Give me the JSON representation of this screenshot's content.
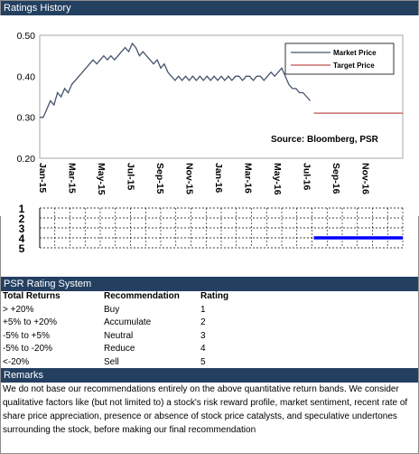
{
  "headers": {
    "ratings_history": "Ratings History",
    "rating_system": "PSR Rating System",
    "remarks": "Remarks"
  },
  "chart_data": [
    {
      "type": "line",
      "yticks": [
        "0.50",
        "0.40",
        "0.30",
        "0.20"
      ],
      "ylim": [
        0.2,
        0.5
      ],
      "xticks": [
        "Jan-15",
        "Mar-15",
        "May-15",
        "Jul-15",
        "Sep-15",
        "Nov-15",
        "Jan-16",
        "Mar-16",
        "May-16",
        "Jul-16",
        "Sep-16",
        "Nov-16"
      ],
      "legend": [
        "Market Price",
        "Target Price"
      ],
      "legend_position": "top-right",
      "annotation": "Source: Bloomberg, PSR",
      "series": [
        {
          "name": "Market Price",
          "color": "#44546a",
          "points": [
            [
              0,
              0.3
            ],
            [
              1,
              0.3
            ],
            [
              2,
              0.32
            ],
            [
              3,
              0.34
            ],
            [
              4,
              0.33
            ],
            [
              5,
              0.36
            ],
            [
              6,
              0.35
            ],
            [
              7,
              0.37
            ],
            [
              8,
              0.36
            ],
            [
              9,
              0.38
            ],
            [
              10,
              0.39
            ],
            [
              11,
              0.4
            ],
            [
              12,
              0.41
            ],
            [
              13,
              0.42
            ],
            [
              14,
              0.43
            ],
            [
              15,
              0.44
            ],
            [
              16,
              0.43
            ],
            [
              17,
              0.44
            ],
            [
              18,
              0.45
            ],
            [
              19,
              0.44
            ],
            [
              20,
              0.45
            ],
            [
              21,
              0.44
            ],
            [
              22,
              0.45
            ],
            [
              23,
              0.46
            ],
            [
              24,
              0.47
            ],
            [
              25,
              0.46
            ],
            [
              26,
              0.48
            ],
            [
              27,
              0.47
            ],
            [
              28,
              0.45
            ],
            [
              29,
              0.46
            ],
            [
              30,
              0.45
            ],
            [
              31,
              0.44
            ],
            [
              32,
              0.43
            ],
            [
              33,
              0.44
            ],
            [
              34,
              0.42
            ],
            [
              35,
              0.43
            ],
            [
              36,
              0.41
            ],
            [
              37,
              0.4
            ],
            [
              38,
              0.39
            ],
            [
              39,
              0.4
            ],
            [
              40,
              0.39
            ],
            [
              41,
              0.4
            ],
            [
              42,
              0.39
            ],
            [
              43,
              0.4
            ],
            [
              44,
              0.39
            ],
            [
              45,
              0.4
            ],
            [
              46,
              0.39
            ],
            [
              47,
              0.4
            ],
            [
              48,
              0.39
            ],
            [
              49,
              0.4
            ],
            [
              50,
              0.39
            ],
            [
              51,
              0.4
            ],
            [
              52,
              0.39
            ],
            [
              53,
              0.4
            ],
            [
              54,
              0.39
            ],
            [
              55,
              0.4
            ],
            [
              56,
              0.4
            ],
            [
              57,
              0.39
            ],
            [
              58,
              0.4
            ],
            [
              59,
              0.4
            ],
            [
              60,
              0.39
            ],
            [
              61,
              0.4
            ],
            [
              62,
              0.4
            ],
            [
              63,
              0.39
            ],
            [
              64,
              0.4
            ],
            [
              65,
              0.41
            ],
            [
              66,
              0.4
            ],
            [
              67,
              0.41
            ],
            [
              68,
              0.42
            ],
            [
              69,
              0.4
            ],
            [
              70,
              0.38
            ],
            [
              71,
              0.37
            ],
            [
              72,
              0.37
            ],
            [
              73,
              0.36
            ],
            [
              74,
              0.36
            ],
            [
              75,
              0.35
            ],
            [
              76,
              0.34
            ]
          ],
          "x_note": "weekly index from Jan-15"
        },
        {
          "name": "Target Price",
          "color": "#c0504d",
          "points": [
            [
              77,
              0.31
            ],
            [
              102,
              0.31
            ]
          ]
        }
      ]
    },
    {
      "type": "line",
      "yticks": [
        "1",
        "2",
        "3",
        "4",
        "5"
      ],
      "ylim": [
        1,
        5
      ],
      "series": [
        {
          "name": "Rating",
          "color": "#0000ff",
          "points": [
            [
              77,
              4
            ],
            [
              102,
              4
            ]
          ]
        }
      ]
    }
  ],
  "rating_system": {
    "columns": [
      "Total Returns",
      "Recommendation",
      "Rating"
    ],
    "rows": [
      [
        "> +20%",
        "Buy",
        "1"
      ],
      [
        "+5% to +20%",
        "Accumulate",
        "2"
      ],
      [
        "-5% to +5%",
        "Neutral",
        "3"
      ],
      [
        "-5% to -20%",
        "Reduce",
        "4"
      ],
      [
        "<-20%",
        "Sell",
        "5"
      ]
    ]
  },
  "remarks": "We do not base our recommendations entirely on the  above quantitative return bands.  We consider qualitative factors like (but not limited to) a stock's risk reward profile, market sentiment, recent rate of share price appreciation, presence or absence of stock price catalysts, and speculative undertones surrounding the stock, before making our final recommendation"
}
